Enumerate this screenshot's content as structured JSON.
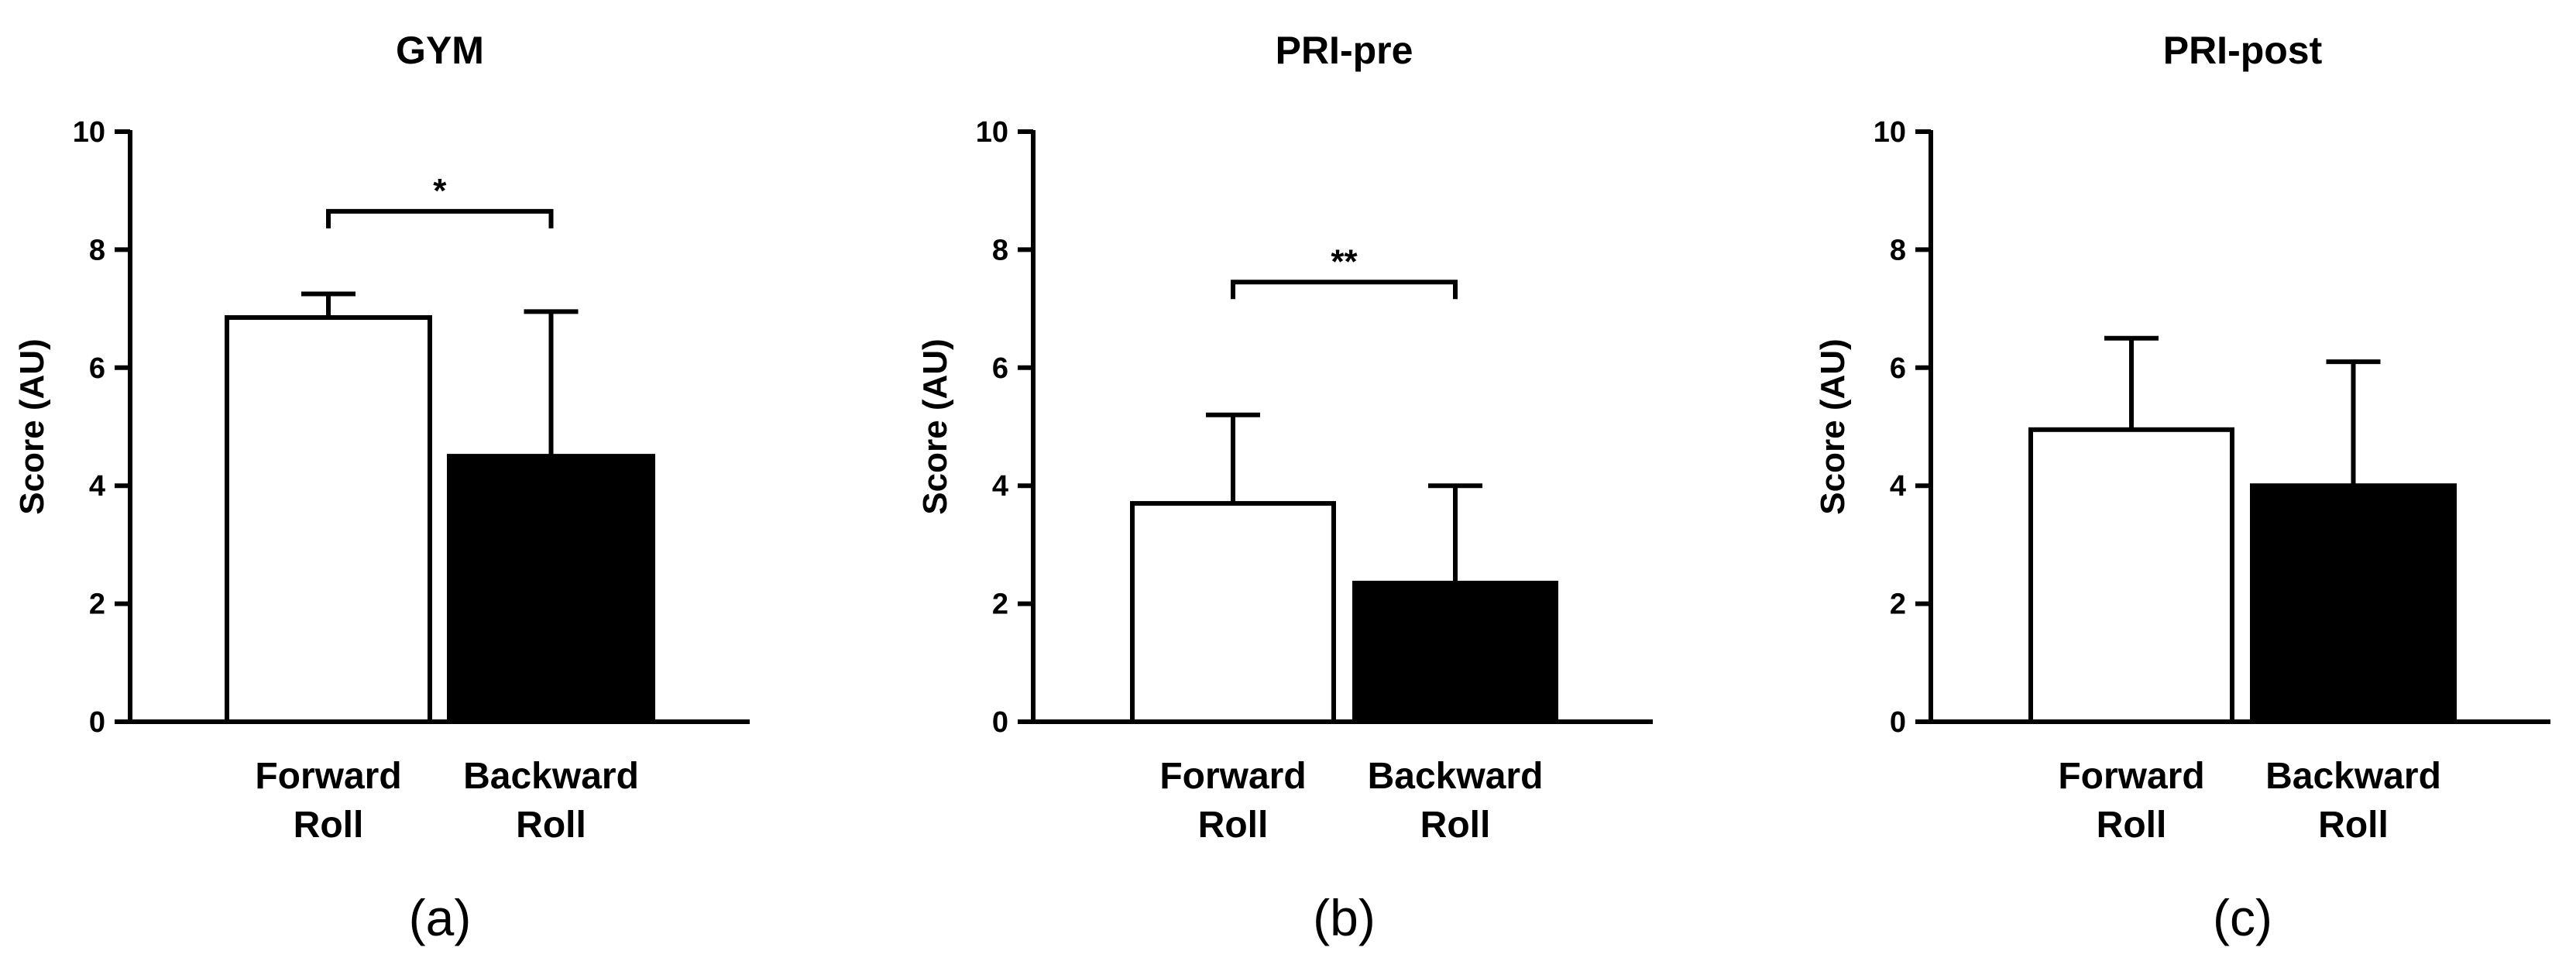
{
  "chart_data": [
    {
      "type": "bar",
      "title": "GYM",
      "panel_label": "(a)",
      "ylabel": "Score (AU)",
      "ylim": [
        0,
        10
      ],
      "yticks": [
        0,
        2,
        4,
        6,
        8,
        10
      ],
      "categories": [
        [
          "Forward",
          "Roll"
        ],
        [
          "Backward",
          "Roll"
        ]
      ],
      "values": [
        6.85,
        4.5
      ],
      "errors": [
        0.4,
        2.45
      ],
      "fills": [
        "#ffffff",
        "#000000"
      ],
      "significance": {
        "from": 0,
        "to": 1,
        "label": "*",
        "y": 8.65
      }
    },
    {
      "type": "bar",
      "title": "PRI-pre",
      "panel_label": "(b)",
      "ylabel": "Score (AU)",
      "ylim": [
        0,
        10
      ],
      "yticks": [
        0,
        2,
        4,
        6,
        8,
        10
      ],
      "categories": [
        [
          "Forward",
          "Roll"
        ],
        [
          "Backward",
          "Roll"
        ]
      ],
      "values": [
        3.7,
        2.35
      ],
      "errors": [
        1.5,
        1.65
      ],
      "fills": [
        "#ffffff",
        "#000000"
      ],
      "significance": {
        "from": 0,
        "to": 1,
        "label": "**",
        "y": 7.45
      }
    },
    {
      "type": "bar",
      "title": "PRI-post",
      "panel_label": "(c)",
      "ylabel": "Score (AU)",
      "ylim": [
        0,
        10
      ],
      "yticks": [
        0,
        2,
        4,
        6,
        8,
        10
      ],
      "categories": [
        [
          "Forward",
          "Roll"
        ],
        [
          "Backward",
          "Roll"
        ]
      ],
      "values": [
        4.95,
        4.0
      ],
      "errors": [
        1.55,
        2.1
      ],
      "fills": [
        "#ffffff",
        "#000000"
      ],
      "significance": null
    }
  ]
}
